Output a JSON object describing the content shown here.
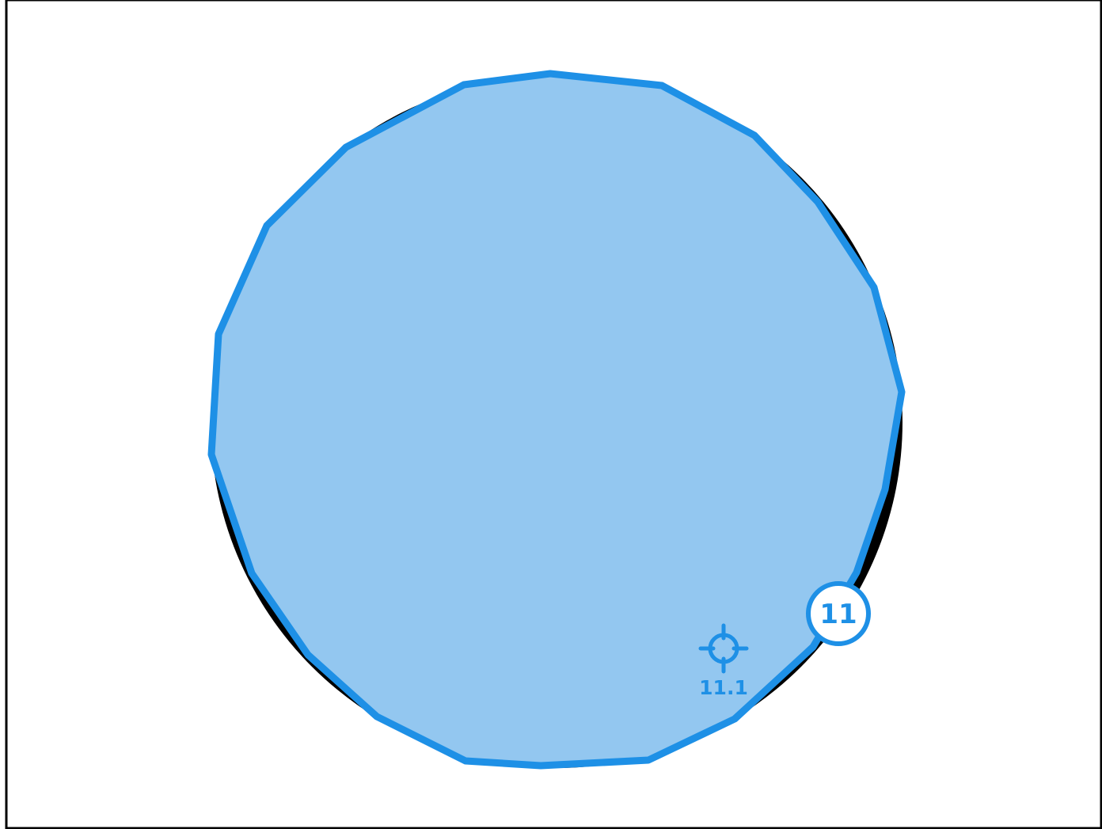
{
  "colors": {
    "background": "#ffffff",
    "frame": "#000000",
    "reference_circle": "#000000",
    "polygon_fill": "#93c7f0",
    "polygon_stroke": "#1e90e6",
    "badge_fill": "#ffffff",
    "badge_stroke": "#1e90e6",
    "badge_text": "#1e90e6",
    "target": "#1e90e6"
  },
  "icons": {
    "target": "crosshair-target-icon"
  },
  "vertex_badge": {
    "label": "11"
  },
  "target_marker": {
    "label": "11.1"
  }
}
